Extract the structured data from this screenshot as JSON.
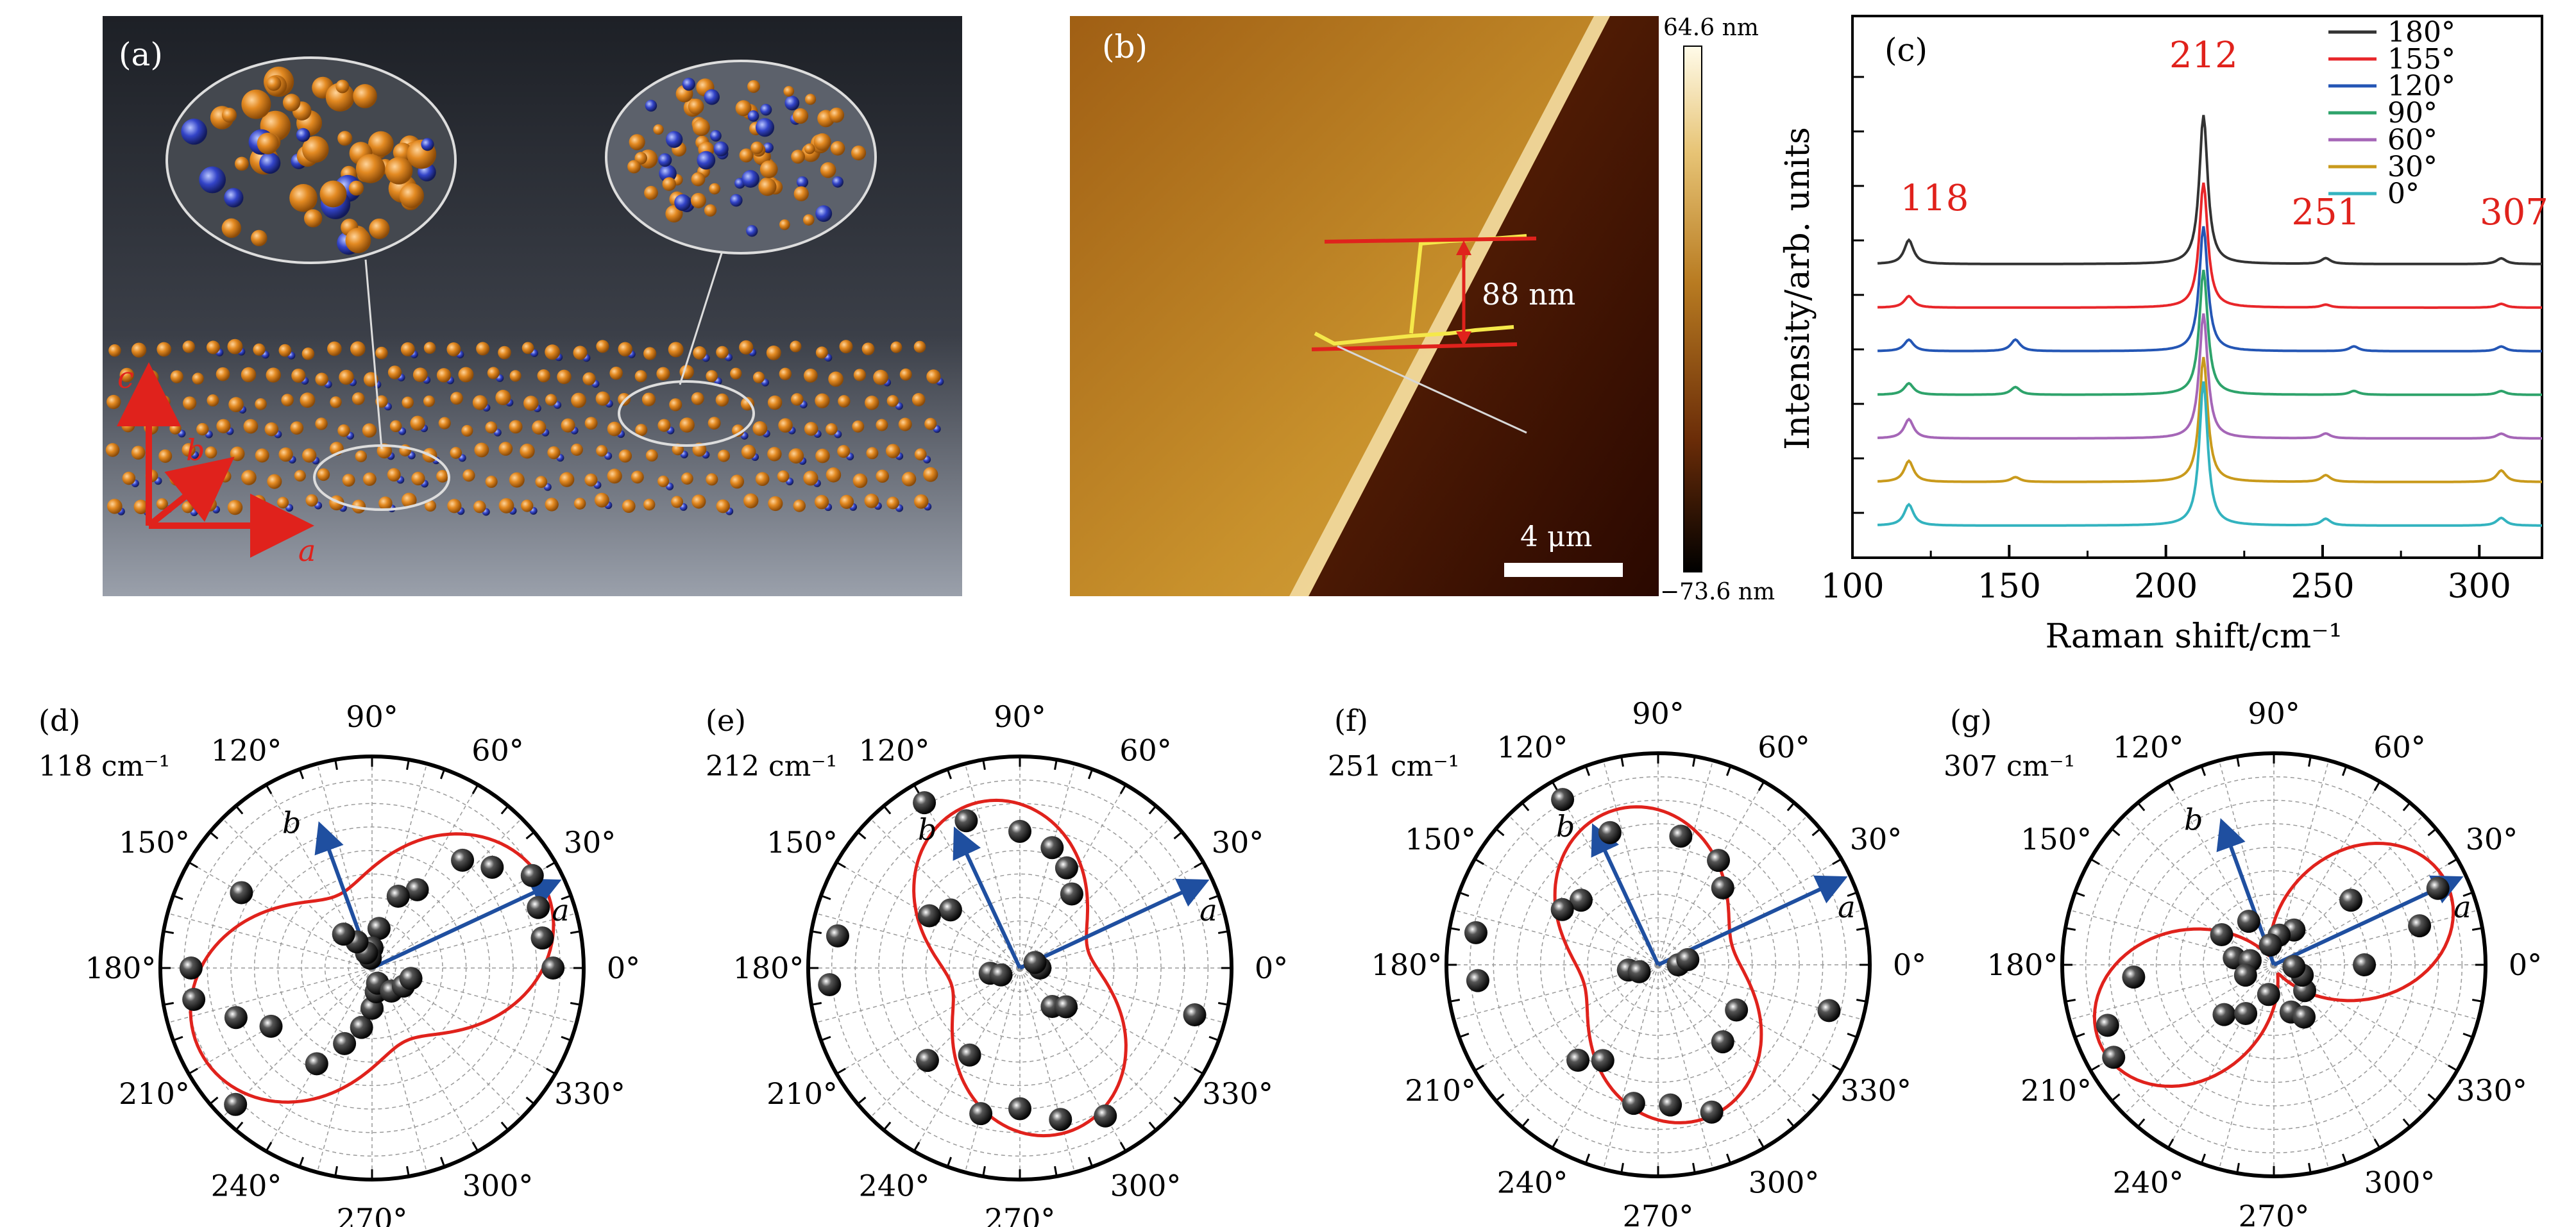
{
  "panels": {
    "a": {
      "label": "(a)",
      "axes": {
        "a": "a",
        "b": "b",
        "c": "c"
      }
    },
    "b": {
      "label": "(b)",
      "colorbar_max": "64.6 nm",
      "colorbar_min": "−73.6 nm",
      "step_height": "88 nm",
      "scalebar": "4 μm"
    },
    "c": {
      "label": "(c)"
    },
    "d": {
      "label": "(d)",
      "mode": "118 cm⁻¹"
    },
    "e": {
      "label": "(e)",
      "mode": "212 cm⁻¹"
    },
    "f": {
      "label": "(f)",
      "mode": "251 cm⁻¹"
    },
    "g": {
      "label": "(g)",
      "mode": "307 cm⁻¹"
    }
  },
  "polar_common": {
    "angle_labels": [
      "0°",
      "30°",
      "60°",
      "90°",
      "120°",
      "150°",
      "180°",
      "210°",
      "240°",
      "270°",
      "300°",
      "330°"
    ],
    "arrow_a": "a",
    "arrow_b": "b",
    "colors": {
      "fit": "#e0221c",
      "arrow": "#1f4fa0",
      "points": "#111111"
    }
  },
  "chart_data": [
    {
      "type": "line",
      "panel": "c",
      "xlabel": "Raman shift/cm⁻¹",
      "ylabel": "Intensity/arb. units",
      "xlim": [
        100,
        320
      ],
      "xticks": [
        100,
        150,
        200,
        250,
        300
      ],
      "peak_annotations": [
        "118",
        "212",
        "251",
        "307"
      ],
      "peak_positions": [
        118,
        212,
        251,
        307
      ],
      "legend_position": "top-right",
      "series": [
        {
          "name": "180°",
          "color": "#333333",
          "peaks": [
            [
              118,
              0.25
            ],
            [
              212,
              1.55
            ],
            [
              251,
              0.06
            ],
            [
              307,
              0.06
            ]
          ],
          "offset": 6
        },
        {
          "name": "155°",
          "color": "#e8262a",
          "peaks": [
            [
              118,
              0.12
            ],
            [
              212,
              1.3
            ],
            [
              251,
              0.03
            ],
            [
              307,
              0.04
            ]
          ],
          "offset": 5
        },
        {
          "name": "120°",
          "color": "#2456b5",
          "peaks": [
            [
              118,
              0.12
            ],
            [
              152,
              0.12
            ],
            [
              212,
              1.3
            ],
            [
              260,
              0.05
            ],
            [
              307,
              0.05
            ]
          ],
          "offset": 4
        },
        {
          "name": "90°",
          "color": "#2ea36b",
          "peaks": [
            [
              118,
              0.12
            ],
            [
              152,
              0.08
            ],
            [
              212,
              1.3
            ],
            [
              260,
              0.04
            ],
            [
              307,
              0.04
            ]
          ],
          "offset": 3
        },
        {
          "name": "60°",
          "color": "#a566b7",
          "peaks": [
            [
              118,
              0.2
            ],
            [
              212,
              1.3
            ],
            [
              251,
              0.05
            ],
            [
              307,
              0.05
            ]
          ],
          "offset": 2
        },
        {
          "name": "30°",
          "color": "#c99a1c",
          "peaks": [
            [
              118,
              0.22
            ],
            [
              152,
              0.05
            ],
            [
              212,
              1.3
            ],
            [
              251,
              0.07
            ],
            [
              307,
              0.12
            ]
          ],
          "offset": 1
        },
        {
          "name": "0°",
          "color": "#33b3bf",
          "peaks": [
            [
              118,
              0.22
            ],
            [
              212,
              1.5
            ],
            [
              251,
              0.07
            ],
            [
              307,
              0.08
            ]
          ],
          "offset": 0
        }
      ]
    },
    {
      "type": "scatter",
      "panel": "d",
      "title": "118 cm⁻¹",
      "fit": {
        "a": 0.95,
        "b": 0.4,
        "peak_deg": 25
      },
      "arrows_deg": {
        "a": 25,
        "b": 110
      },
      "points": [
        [
          0,
          0.9
        ],
        [
          10,
          0.86
        ],
        [
          20,
          0.88
        ],
        [
          30,
          0.92
        ],
        [
          40,
          0.78
        ],
        [
          50,
          0.7
        ],
        [
          60,
          0.45
        ],
        [
          70,
          0.38
        ],
        [
          80,
          0.2
        ],
        [
          90,
          0.1
        ],
        [
          100,
          0.05
        ],
        [
          110,
          0.08
        ],
        [
          120,
          0.15
        ],
        [
          130,
          0.22
        ],
        [
          150,
          0.75
        ],
        [
          180,
          0.9
        ],
        [
          190,
          0.9
        ],
        [
          200,
          0.72
        ],
        [
          210,
          0.58
        ],
        [
          225,
          0.96
        ],
        [
          240,
          0.55
        ],
        [
          250,
          0.4
        ],
        [
          260,
          0.3
        ],
        [
          270,
          0.2
        ],
        [
          280,
          0.12
        ],
        [
          290,
          0.08
        ],
        [
          310,
          0.15
        ],
        [
          330,
          0.18
        ],
        [
          345,
          0.2
        ]
      ]
    },
    {
      "type": "scatter",
      "panel": "e",
      "title": "212 cm⁻¹",
      "fit": {
        "a": 0.85,
        "b": 0.35,
        "peak_deg": 105
      },
      "arrows_deg": {
        "a": 25,
        "b": 115
      },
      "points": [
        [
          0,
          0.1
        ],
        [
          20,
          0.08
        ],
        [
          55,
          0.45
        ],
        [
          65,
          0.55
        ],
        [
          75,
          0.62
        ],
        [
          90,
          0.68
        ],
        [
          110,
          0.78
        ],
        [
          120,
          0.95
        ],
        [
          140,
          0.45
        ],
        [
          150,
          0.52
        ],
        [
          170,
          0.92
        ],
        [
          185,
          0.95
        ],
        [
          190,
          0.15
        ],
        [
          200,
          0.1
        ],
        [
          225,
          0.65
        ],
        [
          240,
          0.5
        ],
        [
          255,
          0.75
        ],
        [
          270,
          0.7
        ],
        [
          285,
          0.78
        ],
        [
          300,
          0.85
        ],
        [
          310,
          0.25
        ],
        [
          320,
          0.3
        ],
        [
          345,
          0.9
        ]
      ]
    },
    {
      "type": "scatter",
      "panel": "f",
      "title": "251 cm⁻¹",
      "fit": {
        "a": 0.8,
        "b": 0.38,
        "peak_deg": 105
      },
      "arrows_deg": {
        "a": 25,
        "b": 115
      },
      "points": [
        [
          0,
          0.1
        ],
        [
          10,
          0.15
        ],
        [
          50,
          0.5
        ],
        [
          60,
          0.6
        ],
        [
          80,
          0.65
        ],
        [
          110,
          0.7
        ],
        [
          120,
          0.95
        ],
        [
          140,
          0.5
        ],
        [
          150,
          0.55
        ],
        [
          170,
          0.92
        ],
        [
          185,
          0.9
        ],
        [
          190,
          0.15
        ],
        [
          200,
          0.1
        ],
        [
          230,
          0.62
        ],
        [
          240,
          0.55
        ],
        [
          260,
          0.7
        ],
        [
          275,
          0.7
        ],
        [
          290,
          0.78
        ],
        [
          310,
          0.5
        ],
        [
          330,
          0.45
        ],
        [
          345,
          0.88
        ]
      ]
    },
    {
      "type": "scatter",
      "panel": "g",
      "title": "307 cm⁻¹",
      "fit": {
        "a": 0.95,
        "b": 0.05,
        "peak_deg": 25
      },
      "arrows_deg": {
        "a": 25,
        "b": 110
      },
      "points": [
        [
          0,
          0.45
        ],
        [
          15,
          0.75
        ],
        [
          25,
          0.9
        ],
        [
          40,
          0.5
        ],
        [
          60,
          0.2
        ],
        [
          80,
          0.15
        ],
        [
          100,
          0.1
        ],
        [
          120,
          0.25
        ],
        [
          150,
          0.3
        ],
        [
          170,
          0.2
        ],
        [
          185,
          0.7
        ],
        [
          200,
          0.88
        ],
        [
          210,
          0.92
        ],
        [
          225,
          0.35
        ],
        [
          240,
          0.28
        ],
        [
          260,
          0.15
        ],
        [
          290,
          0.25
        ],
        [
          300,
          0.3
        ],
        [
          320,
          0.2
        ],
        [
          340,
          0.15
        ],
        [
          355,
          0.1
        ],
        [
          170,
          0.12
        ],
        [
          200,
          0.15
        ]
      ]
    }
  ]
}
